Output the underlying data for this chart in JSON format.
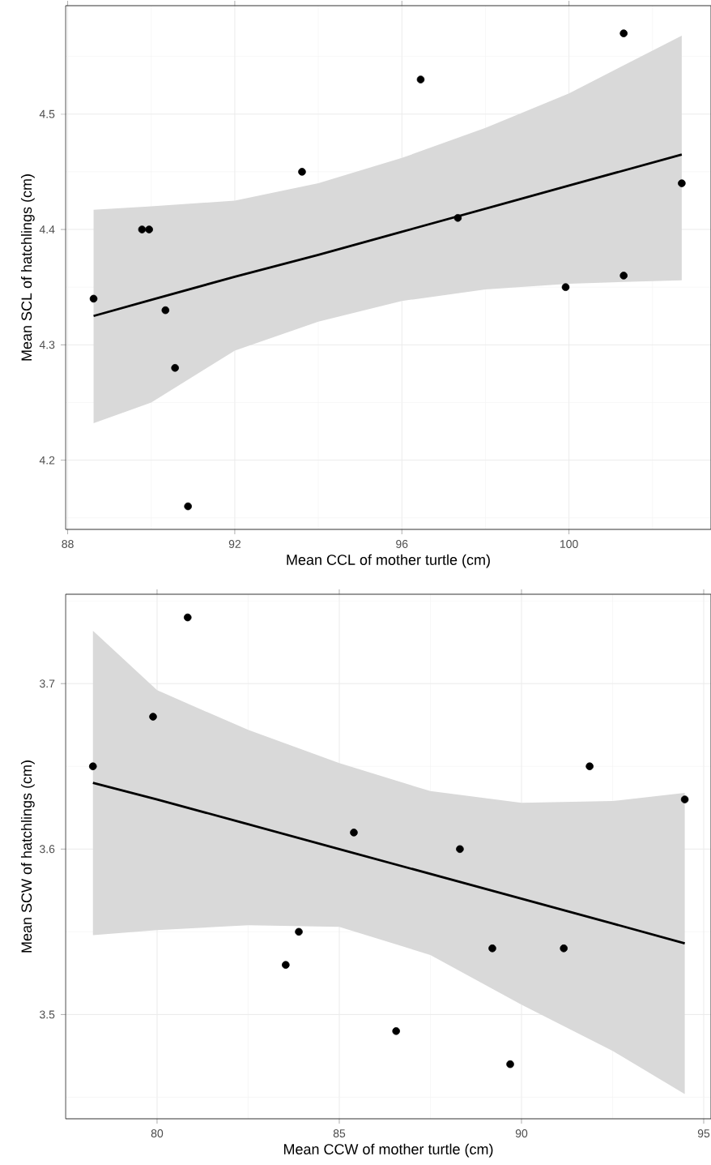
{
  "chart_data": [
    {
      "type": "scatter",
      "marker": "circle",
      "xlabel": "Mean CCL of mother turtle (cm)",
      "ylabel": "Mean SCL of hatchlings (cm)",
      "xlim": [
        87.95,
        103.4
      ],
      "ylim": [
        4.14,
        4.594
      ],
      "xticks": [
        88,
        92,
        96,
        100
      ],
      "yticks": [
        4.2,
        4.3,
        4.4,
        4.5
      ],
      "grid": true,
      "series": [
        {
          "type": "scatter",
          "color": "#000000",
          "x": [
            88.62,
            89.78,
            89.95,
            90.34,
            90.57,
            90.88,
            93.61,
            96.45,
            97.34,
            99.92,
            101.31,
            101.31,
            102.7
          ],
          "values": [
            4.34,
            4.4,
            4.4,
            4.33,
            4.28,
            4.16,
            4.45,
            4.53,
            4.41,
            4.35,
            4.57,
            4.36,
            4.44
          ]
        },
        {
          "type": "line",
          "marker": "none",
          "line_style": "solid",
          "color": "#000000",
          "x": [
            88.62,
            90,
            92,
            94,
            96,
            98,
            100,
            102.7
          ],
          "values": [
            4.325,
            4.339,
            4.359,
            4.378,
            4.398,
            4.418,
            4.438,
            4.465
          ],
          "lower": [
            4.232,
            4.25,
            4.295,
            4.32,
            4.338,
            4.348,
            4.353,
            4.356
          ],
          "upper": [
            4.417,
            4.42,
            4.425,
            4.44,
            4.462,
            4.488,
            4.518,
            4.568
          ]
        }
      ]
    },
    {
      "type": "scatter",
      "marker": "circle",
      "xlabel": "Mean CCW of mother turtle (cm)",
      "ylabel": "Mean SCW of hatchlings (cm)",
      "xlim": [
        77.49,
        95.2
      ],
      "ylim": [
        3.437,
        3.754
      ],
      "xticks": [
        80,
        85,
        90,
        95
      ],
      "yticks": [
        3.5,
        3.6,
        3.7
      ],
      "grid": true,
      "series": [
        {
          "type": "scatter",
          "color": "#000000",
          "x": [
            78.24,
            79.89,
            80.84,
            83.53,
            83.89,
            85.4,
            86.56,
            88.31,
            89.2,
            89.69,
            91.16,
            91.87,
            94.48
          ],
          "values": [
            3.65,
            3.68,
            3.74,
            3.53,
            3.55,
            3.61,
            3.49,
            3.6,
            3.54,
            3.47,
            3.54,
            3.65,
            3.63
          ]
        },
        {
          "type": "line",
          "marker": "none",
          "line_style": "solid",
          "color": "#000000",
          "x": [
            78.24,
            80,
            82.5,
            85,
            87.5,
            90,
            92.5,
            94.48
          ],
          "values": [
            3.64,
            3.63,
            3.615,
            3.6,
            3.585,
            3.57,
            3.555,
            3.543
          ],
          "lower": [
            3.548,
            3.551,
            3.554,
            3.553,
            3.536,
            3.506,
            3.478,
            3.452
          ],
          "upper": [
            3.732,
            3.696,
            3.672,
            3.652,
            3.635,
            3.628,
            3.629,
            3.634
          ]
        }
      ]
    }
  ]
}
